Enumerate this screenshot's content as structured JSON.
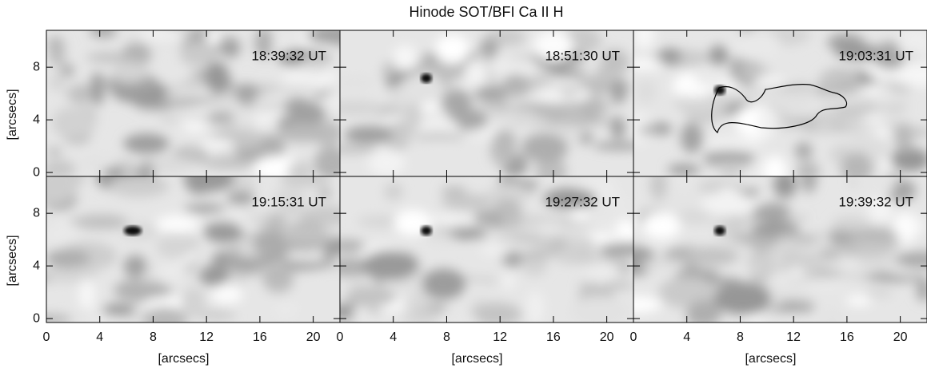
{
  "figure": {
    "title": "Hinode SOT/BFI Ca II H",
    "x_label": "[arcsecs]",
    "y_label": "[arcsecs]",
    "xlim": [
      0,
      22
    ],
    "ylim": [
      -0.3,
      10.8
    ],
    "xticks": [
      0,
      4,
      8,
      12,
      16,
      20
    ],
    "yticks": [
      0,
      4,
      8
    ],
    "panels": [
      {
        "time": "18:39:32 UT"
      },
      {
        "time": "18:51:30 UT"
      },
      {
        "time": "19:03:31 UT"
      },
      {
        "time": "19:15:31 UT"
      },
      {
        "time": "19:27:32 UT"
      },
      {
        "time": "19:39:32 UT"
      }
    ]
  }
}
